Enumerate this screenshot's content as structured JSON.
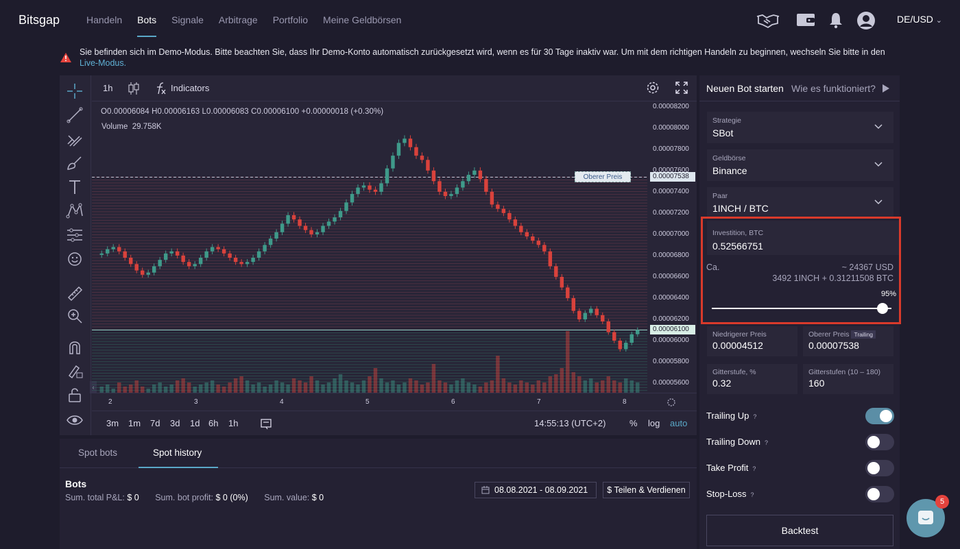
{
  "app": {
    "logo": "Bitsgap"
  },
  "nav": {
    "items": [
      "Handeln",
      "Bots",
      "Signale",
      "Arbitrage",
      "Portfolio",
      "Meine Geldbörsen"
    ],
    "active_index": 1
  },
  "header": {
    "region": "DE/USD"
  },
  "banner": {
    "text": "Sie befinden sich im Demo-Modus. Bitte beachten Sie, dass Ihr Demo-Konto automatisch zurückgesetzt wird, wenn es für 30 Tage inaktiv war. Um mit dem richtigen Handeln zu beginnen, wechseln Sie bitte in den",
    "link": "Live-Modus."
  },
  "chart_toolbar": {
    "interval": "1h",
    "indicators": "Indicators"
  },
  "chart_info": {
    "ohlc": "O0.00006084 H0.00006163 L0.00006083 C0.00006100 +0.00000018 (+0.30%)",
    "volume_label": "Volume",
    "volume_value": "29.758K",
    "upper_price_tag": "Oberer Preis"
  },
  "chart_data": {
    "type": "candlestick",
    "title": "",
    "x_ticks": [
      "2",
      "3",
      "4",
      "5",
      "6",
      "7",
      "8"
    ],
    "y_ticks": [
      "0.00008200",
      "0.00008000",
      "0.00007800",
      "0.00007600",
      "0.00007400",
      "0.00007200",
      "0.00007000",
      "0.00006800",
      "0.00006600",
      "0.00006400",
      "0.00006200",
      "0.00006000",
      "0.00005800",
      "0.00005600"
    ],
    "ylim": [
      5.51e-05,
      8.25e-05
    ],
    "upper_price": "0.00007538",
    "last_price": "0.00006100",
    "close_series": [
      6.82,
      6.86,
      6.88,
      6.84,
      6.78,
      6.72,
      6.66,
      6.62,
      6.64,
      6.7,
      6.76,
      6.82,
      6.84,
      6.8,
      6.74,
      6.7,
      6.72,
      6.78,
      6.84,
      6.88,
      6.86,
      6.82,
      6.78,
      6.74,
      6.72,
      6.74,
      6.78,
      6.84,
      6.9,
      6.96,
      7.02,
      7.1,
      7.18,
      7.14,
      7.08,
      7.04,
      7.0,
      7.02,
      7.08,
      7.12,
      7.16,
      7.22,
      7.3,
      7.38,
      7.44,
      7.46,
      7.42,
      7.4,
      7.48,
      7.62,
      7.74,
      7.86,
      7.9,
      7.82,
      7.74,
      7.7,
      7.6,
      7.5,
      7.4,
      7.36,
      7.38,
      7.44,
      7.5,
      7.56,
      7.6,
      7.52,
      7.4,
      7.28,
      7.24,
      7.2,
      7.14,
      7.08,
      7.02,
      6.98,
      6.94,
      6.9,
      6.84,
      6.7,
      6.6,
      6.5,
      6.4,
      6.28,
      6.2,
      6.26,
      6.3,
      6.24,
      6.18,
      6.08,
      6.0,
      5.92,
      5.98,
      6.06,
      6.1
    ],
    "volume_series": [
      3,
      4,
      2,
      5,
      3,
      4,
      6,
      3,
      2,
      4,
      5,
      3,
      4,
      6,
      7,
      5,
      3,
      4,
      5,
      6,
      4,
      3,
      5,
      7,
      8,
      6,
      4,
      5,
      3,
      4,
      6,
      5,
      4,
      7,
      6,
      5,
      8,
      6,
      4,
      5,
      7,
      9,
      6,
      5,
      4,
      6,
      8,
      12,
      7,
      5,
      6,
      4,
      5,
      7,
      6,
      4,
      5,
      14,
      6,
      5,
      4,
      6,
      7,
      5,
      4,
      3,
      5,
      6,
      18,
      7,
      5,
      4,
      6,
      5,
      4,
      6,
      5,
      8,
      9,
      12,
      30,
      10,
      8,
      6,
      7,
      5,
      6,
      8,
      6,
      5,
      7,
      6,
      5
    ]
  },
  "timeframes": [
    "3m",
    "1m",
    "7d",
    "3d",
    "1d",
    "6h",
    "1h"
  ],
  "chart_footer": {
    "time": "14:55:13 (UTC+2)",
    "percent": "%",
    "log": "log",
    "auto": "auto"
  },
  "bottom_tabs": {
    "items": [
      "Spot bots",
      "Spot history"
    ],
    "active_index": 1
  },
  "bots": {
    "title": "Bots",
    "sum_pnl_label": "Sum. total P&L:",
    "sum_pnl_value": "$ 0",
    "bot_profit_label": "Sum. bot profit:",
    "bot_profit_value": "$ 0",
    "bot_profit_pct": "(0%)",
    "sum_value_label": "Sum. value:",
    "sum_value_value": "$ 0",
    "date_range": "08.08.2021 - 08.09.2021",
    "share_button": "$ Teilen & Verdienen"
  },
  "right_panel": {
    "title": "Neuen Bot starten",
    "how": "Wie es funktioniert?",
    "strategy_label": "Strategie",
    "strategy_value": "SBot",
    "exchange_label": "Geldbörse",
    "exchange_value": "Binance",
    "pair_label": "Paar",
    "pair_value": "1INCH / BTC",
    "invest_label": "Investition, BTC",
    "invest_value": "0.52566751",
    "approx_label": "Ca.",
    "approx_usd": "~ 24367 USD",
    "approx_split": "3492 1INCH + 0.31211508 BTC",
    "slider_pct_label": "95%",
    "slider_pct": 0.95,
    "low_label": "Niedrigerer Preis",
    "low_value": "0.00004512",
    "high_label": "Oberer Preis",
    "high_badge": "Trailing",
    "high_value": "0.00007538",
    "grid_step_label": "Gitterstufe, %",
    "grid_step_value": "0.32",
    "grid_levels_label": "Gitterstufen (10 – 180)",
    "grid_levels_value": "160",
    "toggles": [
      {
        "label": "Trailing Up",
        "on": true
      },
      {
        "label": "Trailing Down",
        "on": false
      },
      {
        "label": "Take Profit",
        "on": false
      },
      {
        "label": "Stop-Loss",
        "on": false
      }
    ],
    "backtest": "Backtest"
  },
  "chat": {
    "badge": "5"
  },
  "colors": {
    "up": "#3f9a8a",
    "down": "#d9423c",
    "accent": "#5aa8c8"
  }
}
